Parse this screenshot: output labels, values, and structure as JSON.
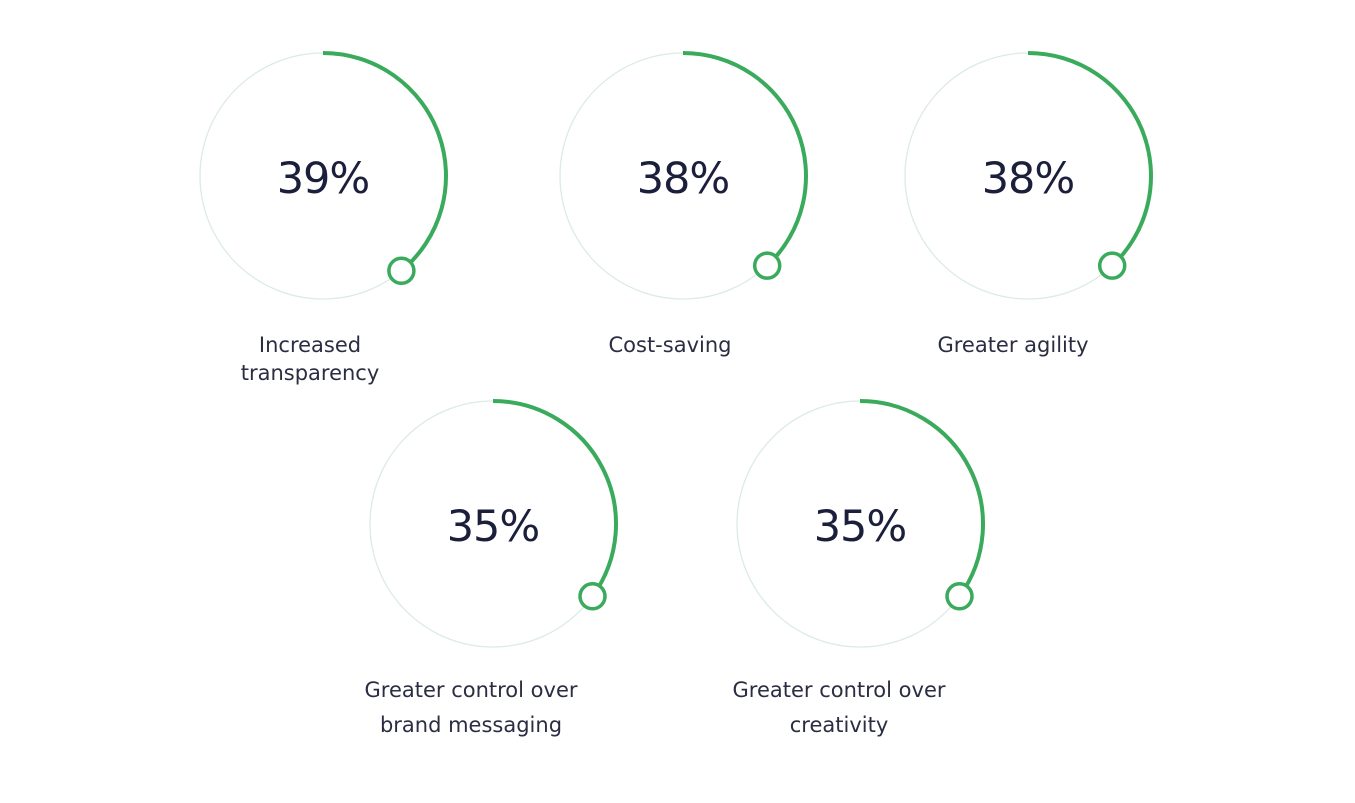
{
  "chart_data": {
    "type": "radial-progress",
    "unit": "%",
    "max": 100,
    "colors": {
      "arc": "#3aaa5c",
      "track": "#dcebe4",
      "value_text": "#1b1f3b",
      "label_text": "#2b2d42"
    },
    "items": [
      {
        "value": 39,
        "display": "39%",
        "label_lines": [
          "Increased",
          "transparency"
        ]
      },
      {
        "value": 38,
        "display": "38%",
        "label_lines": [
          "Cost-saving"
        ]
      },
      {
        "value": 38,
        "display": "38%",
        "label_lines": [
          "Greater agility"
        ]
      },
      {
        "value": 35,
        "display": "35%",
        "label_lines": [
          "Greater control over",
          "brand messaging"
        ]
      },
      {
        "value": 35,
        "display": "35%",
        "label_lines": [
          "Greater control over",
          "creativity"
        ]
      }
    ]
  }
}
